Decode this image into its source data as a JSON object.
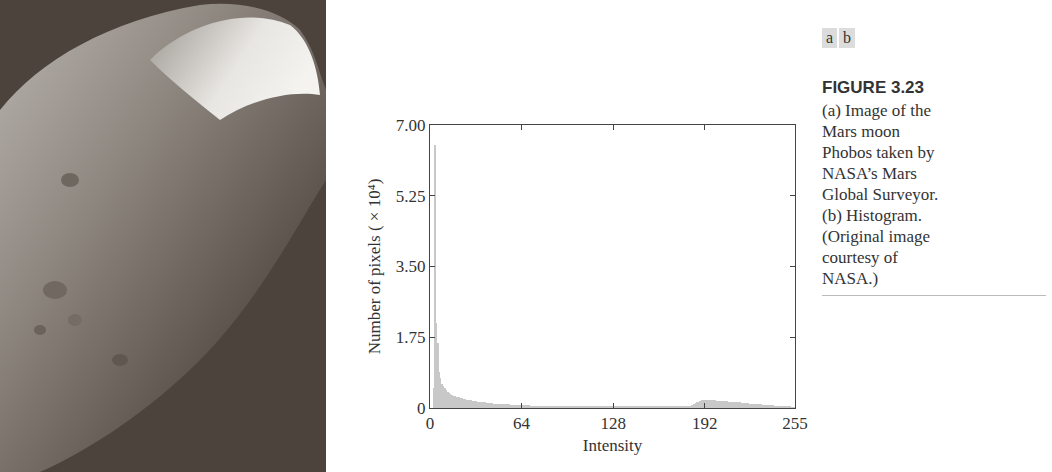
{
  "panel_labels": [
    "a",
    "b"
  ],
  "figure_label": "FIGURE 3.23",
  "caption": [
    "(a) Image of the",
    "Mars moon",
    "Phobos taken by",
    "NASA’s Mars",
    "Global Surveyor.",
    "(b) Histogram.",
    "(Original image",
    "courtesy of",
    "NASA.)"
  ],
  "chart_data": {
    "type": "histogram",
    "xlabel": "Intensity",
    "ylabel": "Number of pixels ( × 10⁴)",
    "color": "#c8c8c8",
    "grid": false,
    "xlim": [
      0,
      255
    ],
    "ylim": [
      0,
      7
    ],
    "xticks": [
      0,
      64,
      128,
      192,
      255
    ],
    "yticks": [
      0,
      1.75,
      {
        "value": 3.5,
        "label": "3.50"
      },
      5.25,
      {
        "value": 7,
        "label": "7.00"
      }
    ],
    "bins": [
      0,
      1,
      2,
      3,
      4,
      5,
      6,
      7,
      8,
      9,
      10,
      11,
      12,
      13,
      14,
      15,
      16,
      17,
      18,
      19,
      20,
      21,
      22,
      23,
      24,
      25,
      26,
      27,
      28,
      29,
      30,
      31,
      32,
      33,
      34,
      35,
      36,
      37,
      38,
      39,
      40,
      41,
      42,
      43,
      44,
      45,
      46,
      47,
      48,
      49,
      50,
      51,
      52,
      53,
      54,
      55,
      56,
      57,
      58,
      59,
      60,
      61,
      62,
      63,
      64,
      65,
      66,
      67,
      68,
      69,
      70,
      71,
      72,
      73,
      74,
      75,
      76,
      77,
      78,
      79,
      80,
      81,
      82,
      83,
      84,
      85,
      86,
      87,
      88,
      89,
      90,
      91,
      92,
      93,
      94,
      95,
      96,
      97,
      98,
      99,
      100,
      101,
      102,
      103,
      104,
      105,
      106,
      107,
      108,
      109,
      110,
      111,
      112,
      113,
      114,
      115,
      116,
      117,
      118,
      119,
      120,
      121,
      122,
      123,
      124,
      125,
      126,
      127,
      128,
      129,
      130,
      131,
      132,
      133,
      134,
      135,
      136,
      137,
      138,
      139,
      140,
      141,
      142,
      143,
      144,
      145,
      146,
      147,
      148,
      149,
      150,
      151,
      152,
      153,
      154,
      155,
      156,
      157,
      158,
      159,
      160,
      161,
      162,
      163,
      164,
      165,
      166,
      167,
      168,
      169,
      170,
      171,
      172,
      173,
      174,
      175,
      176,
      177,
      178,
      179,
      180,
      181,
      182,
      183,
      184,
      185,
      186,
      187,
      188,
      189,
      190,
      191,
      192,
      193,
      194,
      195,
      196,
      197,
      198,
      199,
      200,
      201,
      202,
      203,
      204,
      205,
      206,
      207,
      208,
      209,
      210,
      211,
      212,
      213,
      214,
      215,
      216,
      217,
      218,
      219,
      220,
      221,
      222,
      223,
      224,
      225,
      226,
      227,
      228,
      229,
      230,
      231,
      232,
      233,
      234,
      235,
      236,
      237,
      238,
      239,
      240,
      241,
      242,
      243,
      244,
      245,
      246,
      247,
      248,
      249,
      250,
      251,
      252,
      253,
      254,
      255,
      256
    ],
    "values": [
      0,
      0,
      0.5,
      6.5,
      2.1,
      1.6,
      0.9,
      0.75,
      0.6,
      0.55,
      0.5,
      0.45,
      0.4,
      0.38,
      0.35,
      0.33,
      0.3,
      0.3,
      0.28,
      0.27,
      0.26,
      0.25,
      0.24,
      0.23,
      0.22,
      0.21,
      0.2,
      0.2,
      0.19,
      0.18,
      0.18,
      0.17,
      0.17,
      0.16,
      0.16,
      0.15,
      0.15,
      0.14,
      0.14,
      0.13,
      0.13,
      0.12,
      0.12,
      0.12,
      0.11,
      0.11,
      0.11,
      0.1,
      0.1,
      0.1,
      0.1,
      0.09,
      0.09,
      0.09,
      0.09,
      0.09,
      0.08,
      0.08,
      0.08,
      0.08,
      0.08,
      0.08,
      0.07,
      0.07,
      0.07,
      0.07,
      0.07,
      0.07,
      0.07,
      0.07,
      0.06,
      0.06,
      0.06,
      0.06,
      0.06,
      0.06,
      0.06,
      0.06,
      0.06,
      0.06,
      0.06,
      0.06,
      0.06,
      0.06,
      0.06,
      0.06,
      0.06,
      0.06,
      0.06,
      0.06,
      0.06,
      0.06,
      0.06,
      0.06,
      0.06,
      0.06,
      0.05,
      0.05,
      0.05,
      0.05,
      0.05,
      0.05,
      0.05,
      0.05,
      0.05,
      0.05,
      0.05,
      0.05,
      0.05,
      0.05,
      0.05,
      0.05,
      0.05,
      0.05,
      0.05,
      0.05,
      0.05,
      0.05,
      0.05,
      0.05,
      0.05,
      0.05,
      0.05,
      0.05,
      0.05,
      0.05,
      0.05,
      0.05,
      0.05,
      0.05,
      0.05,
      0.05,
      0.05,
      0.05,
      0.05,
      0.05,
      0.05,
      0.05,
      0.05,
      0.05,
      0.05,
      0.05,
      0.05,
      0.05,
      0.05,
      0.05,
      0.05,
      0.05,
      0.05,
      0.05,
      0.05,
      0.05,
      0.05,
      0.05,
      0.05,
      0.05,
      0.05,
      0.05,
      0.05,
      0.05,
      0.05,
      0.05,
      0.05,
      0.05,
      0.05,
      0.05,
      0.05,
      0.05,
      0.05,
      0.05,
      0.05,
      0.05,
      0.05,
      0.05,
      0.05,
      0.05,
      0.05,
      0.05,
      0.05,
      0.05,
      0.06,
      0.06,
      0.07,
      0.08,
      0.1,
      0.12,
      0.14,
      0.16,
      0.18,
      0.19,
      0.2,
      0.2,
      0.21,
      0.21,
      0.2,
      0.2,
      0.2,
      0.19,
      0.19,
      0.19,
      0.18,
      0.18,
      0.18,
      0.18,
      0.17,
      0.17,
      0.17,
      0.17,
      0.16,
      0.16,
      0.16,
      0.15,
      0.15,
      0.15,
      0.14,
      0.14,
      0.14,
      0.13,
      0.13,
      0.13,
      0.12,
      0.12,
      0.12,
      0.11,
      0.11,
      0.11,
      0.1,
      0.1,
      0.1,
      0.09,
      0.09,
      0.09,
      0.08,
      0.08,
      0.08,
      0.08,
      0.07,
      0.07,
      0.07,
      0.07,
      0.06,
      0.06,
      0.06,
      0.06,
      0.05,
      0.05,
      0.05,
      0.05,
      0.04,
      0.04,
      0.04,
      0.04,
      0.03,
      0.03,
      0.03,
      0.03
    ]
  }
}
